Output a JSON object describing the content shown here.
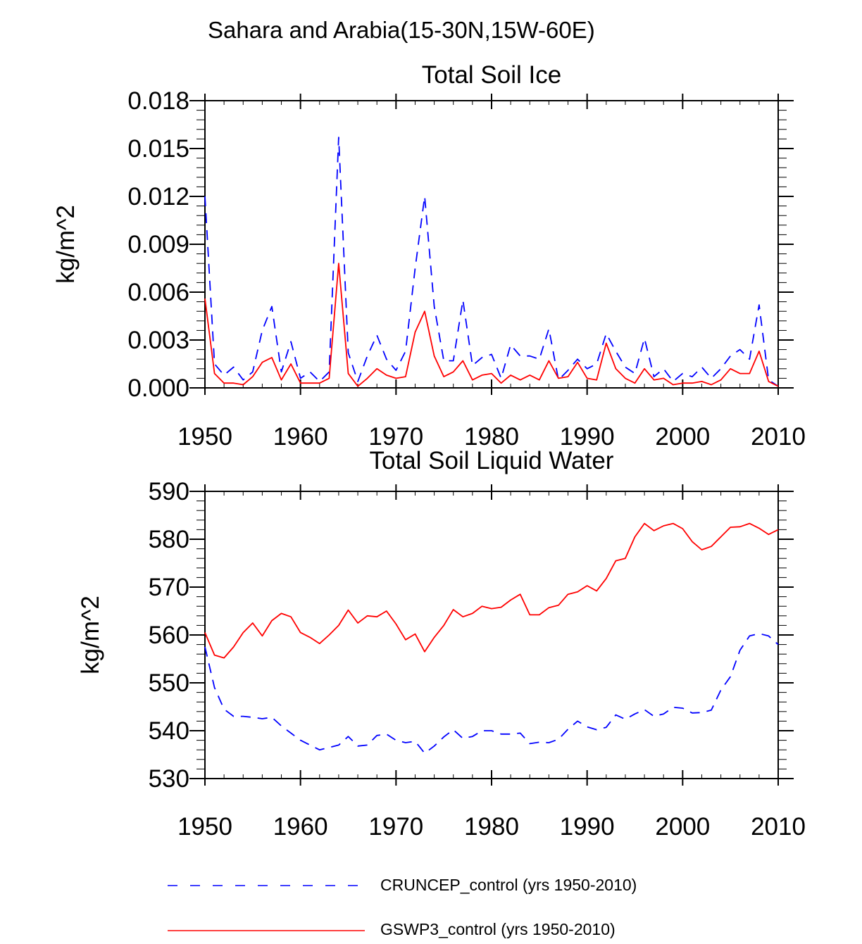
{
  "figure_title": "Sahara and Arabia(15-30N,15W-60E)",
  "colors": {
    "cruncep": "#0000ff",
    "gswp3": "#ff0000",
    "axis": "#000000"
  },
  "legend": {
    "cruncep_label": "CRUNCEP_control (yrs 1950-2010)",
    "gswp3_label": "GSWP3_control (yrs 1950-2010)"
  },
  "chart_data": [
    {
      "type": "line",
      "title": "Total Soil Ice",
      "xlabel": "",
      "ylabel": "kg/m^2",
      "xlim": [
        1950,
        2010
      ],
      "ylim": [
        0,
        0.018
      ],
      "xticks": [
        1950,
        1960,
        1970,
        1980,
        1990,
        2000,
        2010
      ],
      "xtick_labels": [
        "1950",
        "1960",
        "1970",
        "1980",
        "1990",
        "2000",
        "2010"
      ],
      "yticks": [
        0,
        0.003,
        0.006,
        0.009,
        0.012,
        0.015,
        0.018
      ],
      "ytick_labels": [
        "0.000",
        "0.003",
        "0.006",
        "0.009",
        "0.012",
        "0.015",
        "0.018"
      ],
      "x": [
        1950,
        1951,
        1952,
        1953,
        1954,
        1955,
        1956,
        1957,
        1958,
        1959,
        1960,
        1961,
        1962,
        1963,
        1964,
        1965,
        1966,
        1967,
        1968,
        1969,
        1970,
        1971,
        1972,
        1973,
        1974,
        1975,
        1976,
        1977,
        1978,
        1979,
        1980,
        1981,
        1982,
        1983,
        1984,
        1985,
        1986,
        1987,
        1988,
        1989,
        1990,
        1991,
        1992,
        1993,
        1994,
        1995,
        1996,
        1997,
        1998,
        1999,
        2000,
        2001,
        2002,
        2003,
        2004,
        2005,
        2006,
        2007,
        2008,
        2009,
        2010
      ],
      "series": [
        {
          "name": "CRUNCEP_control (yrs 1950-2010)",
          "style": "dashed",
          "values": [
            0.012,
            0.0015,
            0.0008,
            0.0013,
            0.0005,
            0.001,
            0.0036,
            0.0051,
            0.001,
            0.0029,
            0.0006,
            0.001,
            0.0004,
            0.001,
            0.0157,
            0.0022,
            0.0004,
            0.002,
            0.0033,
            0.0018,
            0.0011,
            0.0023,
            0.0075,
            0.012,
            0.0051,
            0.0017,
            0.0017,
            0.0055,
            0.0014,
            0.0019,
            0.0021,
            0.0006,
            0.0027,
            0.002,
            0.002,
            0.0018,
            0.0037,
            0.0005,
            0.0011,
            0.0018,
            0.0012,
            0.0015,
            0.0034,
            0.0023,
            0.0013,
            0.0009,
            0.0031,
            0.0007,
            0.0012,
            0.0004,
            0.0009,
            0.0007,
            0.0013,
            0.0006,
            0.0012,
            0.002,
            0.0024,
            0.0018,
            0.0052,
            0.0005,
            0.0001
          ]
        },
        {
          "name": "GSWP3_control (yrs 1950-2010)",
          "style": "solid",
          "values": [
            0.0056,
            0.0009,
            0.0003,
            0.0003,
            0.0002,
            0.0007,
            0.0016,
            0.0019,
            0.0005,
            0.0015,
            0.0003,
            0.0003,
            0.0003,
            0.0006,
            0.0078,
            0.0009,
            0.0001,
            0.0006,
            0.0012,
            0.0008,
            0.0006,
            0.0007,
            0.0035,
            0.0048,
            0.002,
            0.0007,
            0.001,
            0.0017,
            0.0005,
            0.0008,
            0.0009,
            0.0003,
            0.0008,
            0.0005,
            0.0008,
            0.0005,
            0.0017,
            0.0006,
            0.0007,
            0.0016,
            0.0006,
            0.0005,
            0.0028,
            0.0012,
            0.0006,
            0.0003,
            0.0012,
            0.0005,
            0.0006,
            0.0002,
            0.0003,
            0.0003,
            0.0004,
            0.0002,
            0.0005,
            0.0012,
            0.0009,
            0.0009,
            0.0023,
            0.0004,
            0.0001
          ]
        }
      ]
    },
    {
      "type": "line",
      "title": "Total Soil Liquid Water",
      "xlabel": "",
      "ylabel": "kg/m^2",
      "xlim": [
        1950,
        2010
      ],
      "ylim": [
        530,
        590
      ],
      "xticks": [
        1950,
        1960,
        1970,
        1980,
        1990,
        2000,
        2010
      ],
      "xtick_labels": [
        "1950",
        "1960",
        "1970",
        "1980",
        "1990",
        "2000",
        "2010"
      ],
      "yticks": [
        530,
        540,
        550,
        560,
        570,
        580,
        590
      ],
      "ytick_labels": [
        "530",
        "540",
        "550",
        "560",
        "570",
        "580",
        "590"
      ],
      "x": [
        1950,
        1951,
        1952,
        1953,
        1954,
        1955,
        1956,
        1957,
        1958,
        1959,
        1960,
        1961,
        1962,
        1963,
        1964,
        1965,
        1966,
        1967,
        1968,
        1969,
        1970,
        1971,
        1972,
        1973,
        1974,
        1975,
        1976,
        1977,
        1978,
        1979,
        1980,
        1981,
        1982,
        1983,
        1984,
        1985,
        1986,
        1987,
        1988,
        1989,
        1990,
        1991,
        1992,
        1993,
        1994,
        1995,
        1996,
        1997,
        1998,
        1999,
        2000,
        2001,
        2002,
        2003,
        2004,
        2005,
        2006,
        2007,
        2008,
        2009,
        2010
      ],
      "series": [
        {
          "name": "CRUNCEP_control (yrs 1950-2010)",
          "style": "dashed",
          "values": [
            557.5,
            549.0,
            544.5,
            543.0,
            543.0,
            542.8,
            542.5,
            542.8,
            541.0,
            539.5,
            538.0,
            537.0,
            536.0,
            536.5,
            537.0,
            538.8,
            536.8,
            537.0,
            539.0,
            539.3,
            538.0,
            537.5,
            537.8,
            535.3,
            536.8,
            538.7,
            540.2,
            538.4,
            538.8,
            540.0,
            540.0,
            539.3,
            539.3,
            539.5,
            537.3,
            537.6,
            537.5,
            538.2,
            540.3,
            542.0,
            540.8,
            540.2,
            540.7,
            543.3,
            542.4,
            543.5,
            544.4,
            543.0,
            543.5,
            544.9,
            544.7,
            543.7,
            543.8,
            544.3,
            548.5,
            551.3,
            556.8,
            559.8,
            560.3,
            559.8,
            558.0
          ]
        },
        {
          "name": "GSWP3_control (yrs 1950-2010)",
          "style": "solid",
          "values": [
            560.5,
            555.8,
            555.2,
            557.5,
            560.5,
            562.5,
            559.8,
            563.0,
            564.5,
            563.8,
            560.5,
            559.5,
            558.2,
            560.0,
            562.0,
            565.2,
            562.5,
            564.0,
            563.8,
            565.0,
            562.3,
            559.0,
            560.2,
            556.5,
            559.5,
            562.0,
            565.3,
            563.8,
            564.5,
            566.0,
            565.5,
            565.8,
            567.3,
            568.5,
            564.2,
            564.2,
            565.7,
            566.2,
            568.5,
            569.0,
            570.3,
            569.2,
            571.8,
            575.5,
            576.0,
            580.5,
            583.3,
            581.8,
            582.8,
            583.3,
            582.2,
            579.5,
            577.8,
            578.5,
            580.5,
            582.5,
            582.6,
            583.3,
            582.3,
            581.0,
            582.0
          ]
        }
      ]
    }
  ]
}
